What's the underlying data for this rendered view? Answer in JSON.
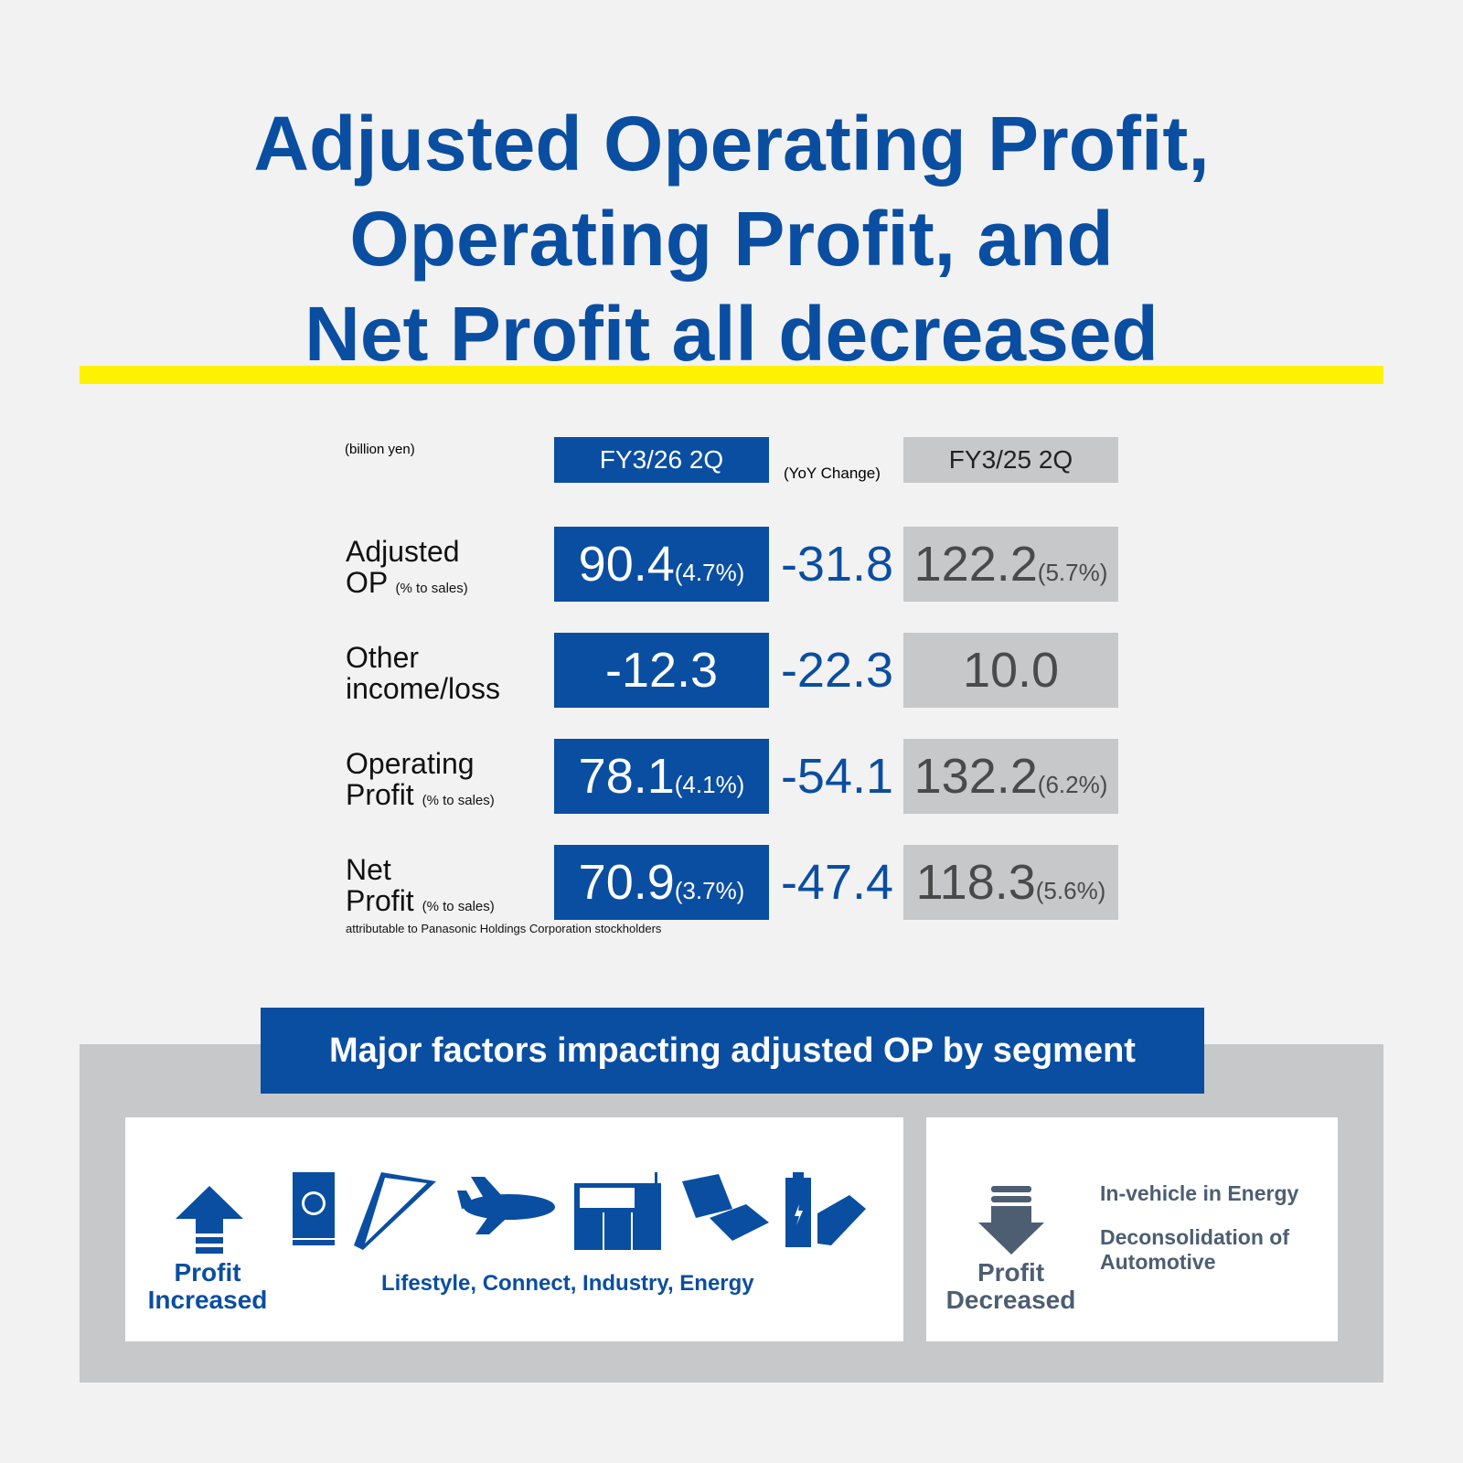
{
  "title": [
    "Adjusted Operating Profit,",
    "Operating Profit, and",
    "Net Profit all decreased"
  ],
  "unit": "(billion yen)",
  "col_current": "FY3/26 2Q",
  "col_yoy": "(YoY Change)",
  "col_prev": "FY3/25 2Q",
  "rows": [
    {
      "l1": "Adjusted",
      "l2": "OP",
      "note": "(% to sales)",
      "cur": "90.4",
      "cur_pct": "(4.7%)",
      "yoy": "-31.8",
      "prev": "122.2",
      "prev_pct": "(5.7%)"
    },
    {
      "l1": "Other",
      "l2": "income/loss",
      "note": "",
      "cur": "-12.3",
      "cur_pct": "",
      "yoy": "-22.3",
      "prev": "10.0",
      "prev_pct": ""
    },
    {
      "l1": "Operating",
      "l2": "Profit",
      "note": "(% to sales)",
      "cur": "78.1",
      "cur_pct": "(4.1%)",
      "yoy": "-54.1",
      "prev": "132.2",
      "prev_pct": "(6.2%)"
    },
    {
      "l1": "Net",
      "l2": "Profit",
      "note": "(% to sales)",
      "sub": "attributable to Panasonic Holdings Corporation stockholders",
      "cur": "70.9",
      "cur_pct": "(3.7%)",
      "yoy": "-47.4",
      "prev": "118.3",
      "prev_pct": "(5.6%)"
    }
  ],
  "factors": {
    "heading": "Major factors impacting adjusted OP by segment",
    "inc_label": "Profit Increased",
    "inc_segments": "Lifestyle, Connect, Industry, Energy",
    "dec_label": "Profit Decreased",
    "dec_items": [
      "In-vehicle in Energy",
      "Deconsolidation of Automotive"
    ]
  }
}
